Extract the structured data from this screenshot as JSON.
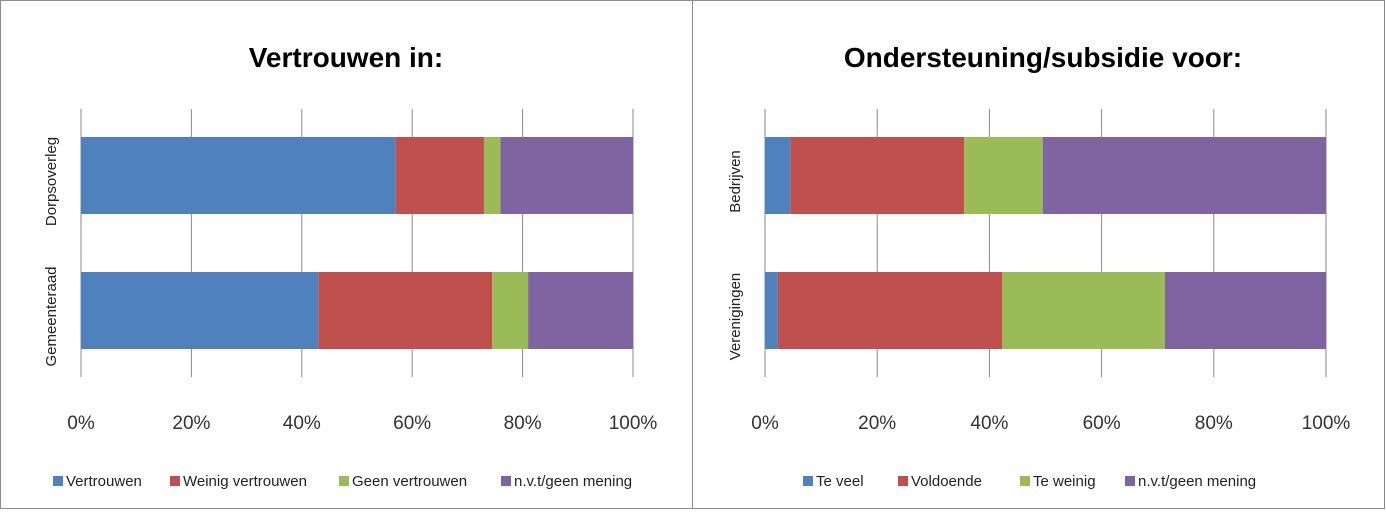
{
  "chart_data": [
    {
      "type": "bar",
      "orientation": "horizontal",
      "stacked": "percent",
      "title": "Vertrouwen in:",
      "categories": [
        "Dorpsoverleg",
        "Gemeenteraad"
      ],
      "xlim": [
        0,
        100
      ],
      "xticks": [
        "0%",
        "20%",
        "40%",
        "60%",
        "80%",
        "100%"
      ],
      "grid": true,
      "legend_position": "bottom",
      "series": [
        {
          "name": "Vertrouwen",
          "color": "#4f81bd",
          "values": [
            57,
            43
          ]
        },
        {
          "name": "Weinig vertrouwen",
          "color": "#c0504d",
          "values": [
            16,
            31.5
          ]
        },
        {
          "name": "Geen vertrouwen",
          "color": "#9bbb59",
          "values": [
            3,
            6.5
          ]
        },
        {
          "name": "n.v.t/geen mening",
          "color": "#8064a2",
          "values": [
            24,
            19
          ]
        }
      ]
    },
    {
      "type": "bar",
      "orientation": "horizontal",
      "stacked": "percent",
      "title": "Ondersteuning/subsidie voor:",
      "categories": [
        "Bedrijven",
        "Verenigingen"
      ],
      "xlim": [
        0,
        100
      ],
      "xticks": [
        "0%",
        "20%",
        "40%",
        "60%",
        "80%",
        "100%"
      ],
      "grid": true,
      "legend_position": "bottom",
      "series": [
        {
          "name": "Te veel",
          "color": "#4f81bd",
          "values": [
            4.5,
            2.3
          ]
        },
        {
          "name": "Voldoende",
          "color": "#c0504d",
          "values": [
            31,
            40
          ]
        },
        {
          "name": "Te weinig",
          "color": "#9bbb59",
          "values": [
            14,
            29
          ]
        },
        {
          "name": "n.v.t/geen mening",
          "color": "#8064a2",
          "values": [
            50.5,
            28.7
          ]
        }
      ]
    }
  ]
}
